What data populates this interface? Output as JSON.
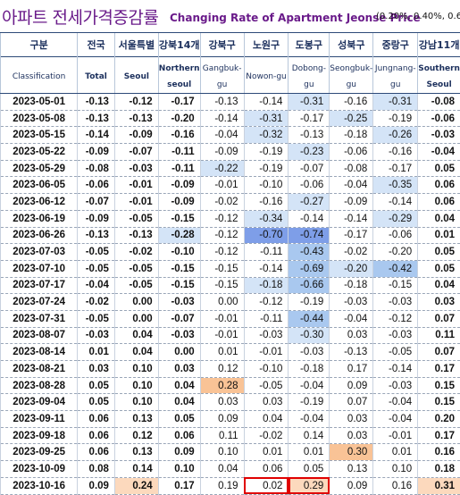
{
  "title": {
    "korean": "아파트 전세가격증감률",
    "english": "Changing Rate of Apartment Jeonse Price",
    "note": "(0.20%, 0.40%, 0.60"
  },
  "headers": [
    {
      "ko": "구분",
      "en": "Classification"
    },
    {
      "ko": "전국",
      "en": "Total"
    },
    {
      "ko": "서울특별",
      "en": "Seoul"
    },
    {
      "ko": "강북14개",
      "en": "Northern seoul"
    },
    {
      "ko": "강북구",
      "en": "Gangbuk-gu"
    },
    {
      "ko": "노원구",
      "en": "Nowon-gu"
    },
    {
      "ko": "도봉구",
      "en": "Dobong-gu"
    },
    {
      "ko": "성북구",
      "en": "Seongbuk-gu"
    },
    {
      "ko": "중랑구",
      "en": "Jungnang-gu"
    },
    {
      "ko": "강남11개",
      "en": "Southern Seoul"
    }
  ],
  "rows": [
    {
      "date": "2023-05-01",
      "values": [
        "-0.13",
        "-0.12",
        "-0.17",
        "-0.13",
        "-0.14",
        "-0.31",
        "-0.16",
        "-0.31",
        "-0.08"
      ]
    },
    {
      "date": "2023-05-08",
      "values": [
        "-0.13",
        "-0.13",
        "-0.20",
        "-0.14",
        "-0.31",
        "-0.17",
        "-0.25",
        "-0.19",
        "-0.06"
      ]
    },
    {
      "date": "2023-05-15",
      "values": [
        "-0.14",
        "-0.09",
        "-0.16",
        "-0.04",
        "-0.32",
        "-0.13",
        "-0.18",
        "-0.26",
        "-0.03"
      ]
    },
    {
      "date": "2023-05-22",
      "values": [
        "-0.09",
        "-0.07",
        "-0.11",
        "-0.09",
        "-0.19",
        "-0.23",
        "-0.06",
        "-0.16",
        "-0.04"
      ]
    },
    {
      "date": "2023-05-29",
      "values": [
        "-0.08",
        "-0.03",
        "-0.11",
        "-0.22",
        "-0.19",
        "-0.07",
        "-0.08",
        "-0.17",
        "0.05"
      ]
    },
    {
      "date": "2023-06-05",
      "values": [
        "-0.06",
        "-0.01",
        "-0.09",
        "-0.01",
        "-0.10",
        "-0.06",
        "-0.04",
        "-0.35",
        "0.06"
      ]
    },
    {
      "date": "2023-06-12",
      "values": [
        "-0.07",
        "-0.01",
        "-0.09",
        "-0.02",
        "-0.16",
        "-0.27",
        "-0.09",
        "-0.14",
        "0.06"
      ]
    },
    {
      "date": "2023-06-19",
      "values": [
        "-0.09",
        "-0.05",
        "-0.15",
        "-0.12",
        "-0.34",
        "-0.14",
        "-0.14",
        "-0.29",
        "0.04"
      ]
    },
    {
      "date": "2023-06-26",
      "values": [
        "-0.13",
        "-0.13",
        "-0.28",
        "-0.12",
        "-0.70",
        "-0.74",
        "-0.17",
        "-0.06",
        "0.01"
      ]
    },
    {
      "date": "2023-07-03",
      "values": [
        "-0.05",
        "-0.02",
        "-0.10",
        "-0.12",
        "-0.11",
        "-0.43",
        "-0.02",
        "-0.20",
        "0.05"
      ]
    },
    {
      "date": "2023-07-10",
      "values": [
        "-0.05",
        "-0.05",
        "-0.15",
        "-0.15",
        "-0.14",
        "-0.69",
        "-0.20",
        "-0.42",
        "0.05"
      ]
    },
    {
      "date": "2023-07-17",
      "values": [
        "-0.04",
        "-0.05",
        "-0.15",
        "-0.15",
        "-0.18",
        "-0.66",
        "-0.18",
        "-0.15",
        "0.04"
      ]
    },
    {
      "date": "2023-07-24",
      "values": [
        "-0.02",
        "0.00",
        "-0.03",
        "0.00",
        "-0.12",
        "-0.19",
        "-0.03",
        "-0.03",
        "0.03"
      ]
    },
    {
      "date": "2023-07-31",
      "values": [
        "-0.05",
        "0.00",
        "-0.07",
        "-0.01",
        "-0.11",
        "-0.44",
        "-0.04",
        "-0.12",
        "0.07"
      ]
    },
    {
      "date": "2023-08-07",
      "values": [
        "-0.03",
        "0.04",
        "-0.03",
        "-0.01",
        "-0.03",
        "-0.30",
        "0.03",
        "-0.03",
        "0.11"
      ]
    },
    {
      "date": "2023-08-14",
      "values": [
        "0.01",
        "0.04",
        "0.00",
        "0.01",
        "-0.01",
        "-0.03",
        "-0.13",
        "-0.05",
        "0.07"
      ]
    },
    {
      "date": "2023-08-21",
      "values": [
        "0.03",
        "0.10",
        "0.03",
        "0.12",
        "-0.10",
        "-0.18",
        "0.17",
        "-0.14",
        "0.17"
      ]
    },
    {
      "date": "2023-08-28",
      "values": [
        "0.05",
        "0.10",
        "0.04",
        "0.28",
        "-0.05",
        "-0.04",
        "0.09",
        "-0.03",
        "0.15"
      ]
    },
    {
      "date": "2023-09-04",
      "values": [
        "0.05",
        "0.10",
        "0.04",
        "0.03",
        "0.03",
        "-0.19",
        "0.07",
        "-0.04",
        "0.15"
      ]
    },
    {
      "date": "2023-09-11",
      "values": [
        "0.06",
        "0.13",
        "0.05",
        "0.09",
        "0.04",
        "-0.04",
        "0.03",
        "-0.04",
        "0.20"
      ]
    },
    {
      "date": "2023-09-18",
      "values": [
        "0.06",
        "0.12",
        "0.06",
        "0.11",
        "-0.02",
        "0.14",
        "0.03",
        "-0.01",
        "0.17"
      ]
    },
    {
      "date": "2023-09-25",
      "values": [
        "0.06",
        "0.13",
        "0.09",
        "0.10",
        "0.01",
        "0.01",
        "0.30",
        "0.01",
        "0.16"
      ]
    },
    {
      "date": "2023-10-09",
      "values": [
        "0.08",
        "0.14",
        "0.10",
        "0.04",
        "0.06",
        "0.05",
        "0.13",
        "0.10",
        "0.18"
      ]
    },
    {
      "date": "2023-10-16",
      "values": [
        "0.09",
        "0.24",
        "0.17",
        "0.19",
        "0.02",
        "0.29",
        "0.09",
        "0.16",
        "0.31"
      ]
    }
  ],
  "shading_colors": {
    "light_blue": "#d4e4f7",
    "medium_blue": "#a9c8ef",
    "dark_blue": "#7e9ee8",
    "light_orange": "#fcd9bd",
    "medium_orange": "#f9c396",
    "highlight_box": "#e00000"
  }
}
